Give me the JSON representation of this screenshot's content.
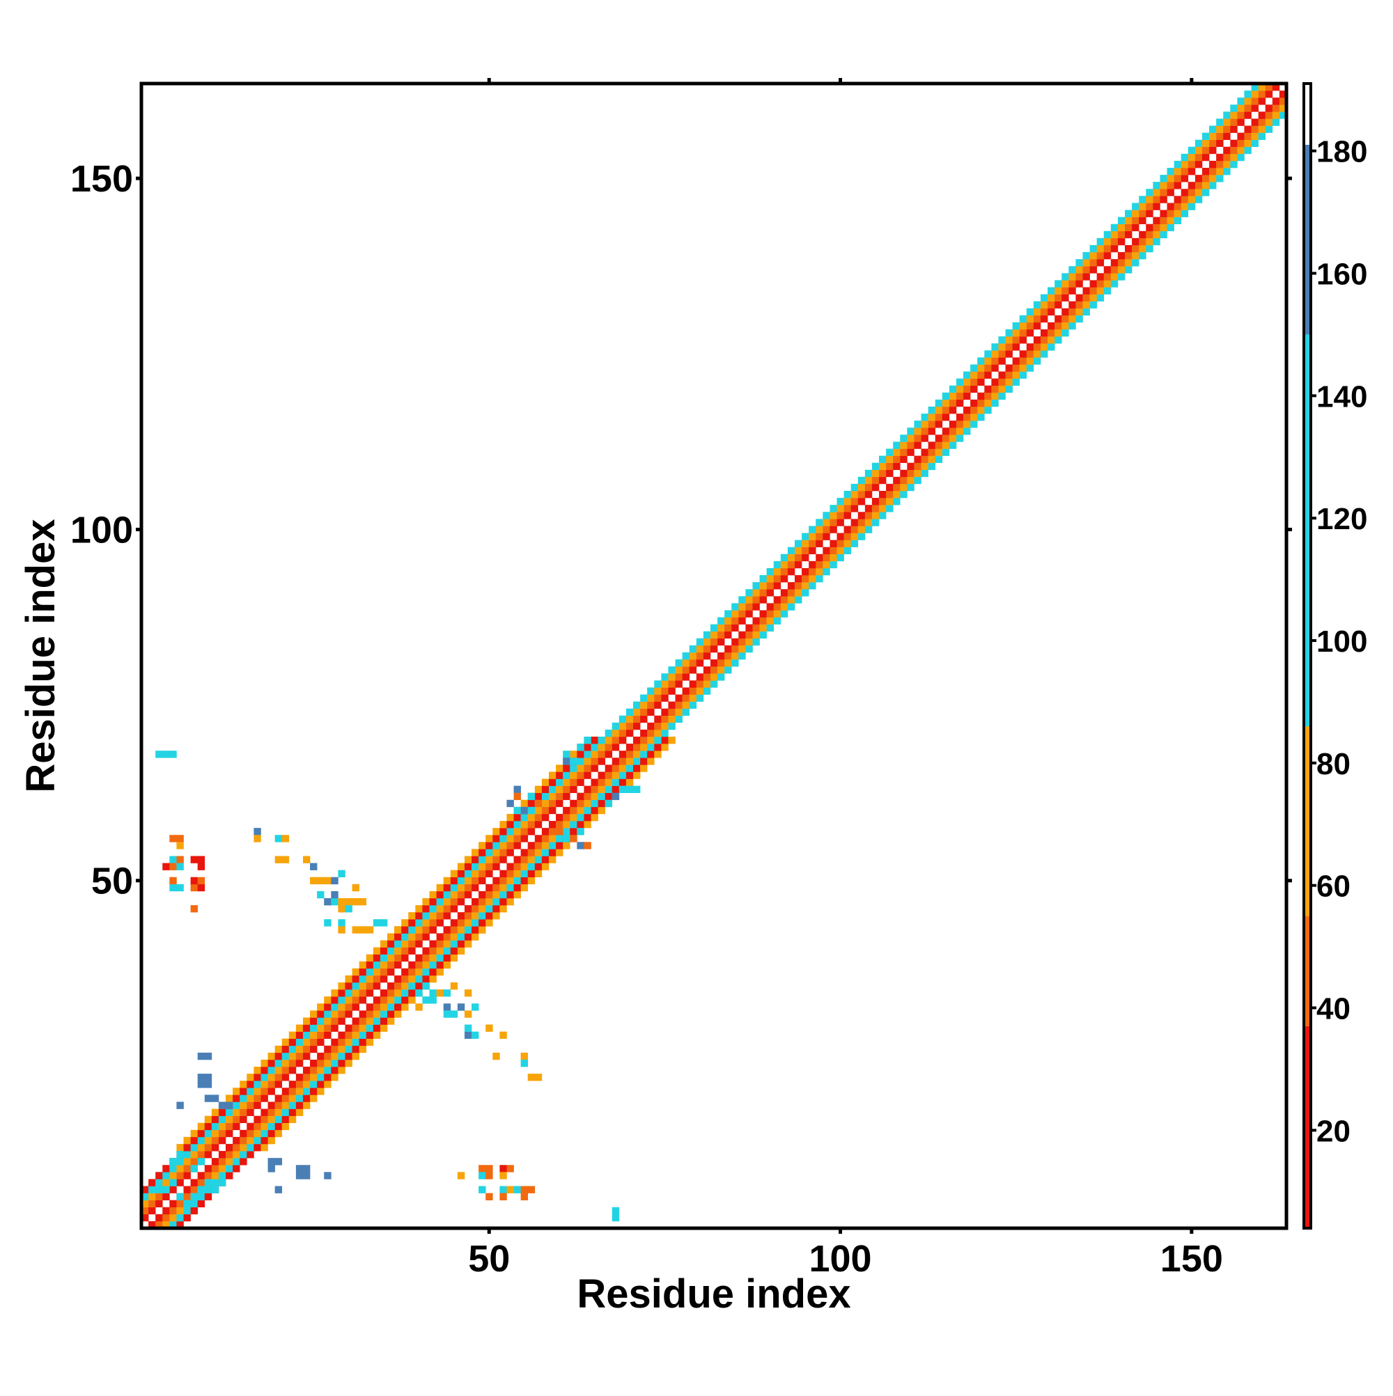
{
  "chart_data": {
    "type": "heatmap",
    "xlabel": "Residue index",
    "ylabel": "Residue index",
    "xlim": [
      1,
      163
    ],
    "ylim": [
      1,
      163
    ],
    "x_ticks": [
      50,
      100,
      150
    ],
    "y_ticks": [
      50,
      100,
      150
    ],
    "colorbar": {
      "range": [
        4,
        191
      ],
      "ticks": [
        20,
        40,
        60,
        80,
        100,
        120,
        140,
        160,
        180
      ],
      "colors": [
        {
          "from": 4,
          "to": 37,
          "color": "#e8160c"
        },
        {
          "from": 37,
          "to": 55,
          "color": "#f26a10"
        },
        {
          "from": 55,
          "to": 86,
          "color": "#f7a40a"
        },
        {
          "from": 86,
          "to": 150,
          "color": "#22d4e3"
        },
        {
          "from": 150,
          "to": 181,
          "color": "#4a7fb6"
        },
        {
          "from": 181,
          "to": 191,
          "color": "#ffffff"
        }
      ]
    },
    "cell_size": 1,
    "diagonal_band": {
      "offset_values": {
        "1": 12,
        "-1": 12,
        "2": 48,
        "-2": 48,
        "3": 70,
        "-3": 70,
        "4": 100,
        "-4": 100,
        "5": 25,
        "-5": 25,
        "6": 75,
        "-6": 75
      },
      "segments": [
        {
          "from": 1,
          "to": 12,
          "max_offset": 5
        },
        {
          "from": 12,
          "to": 43,
          "max_offset": 6
        },
        {
          "from": 43,
          "to": 70,
          "max_offset": 6
        },
        {
          "from": 70,
          "to": 163,
          "max_offset": 4
        }
      ]
    },
    "cells": [
      {
        "x": 3,
        "y": 6,
        "v": 110
      },
      {
        "x": 4,
        "y": 6,
        "v": 110
      },
      {
        "x": 5,
        "y": 7,
        "v": 110
      },
      {
        "x": 6,
        "y": 5,
        "v": 110
      },
      {
        "x": 7,
        "y": 4,
        "v": 110
      },
      {
        "x": 8,
        "y": 5,
        "v": 110
      },
      {
        "x": 9,
        "y": 6,
        "v": 110
      },
      {
        "x": 10,
        "y": 7,
        "v": 110
      },
      {
        "x": 11,
        "y": 6,
        "v": 110
      },
      {
        "x": 12,
        "y": 7,
        "v": 110
      },
      {
        "x": 8,
        "y": 9,
        "v": 110
      },
      {
        "x": 9,
        "y": 10,
        "v": 110
      },
      {
        "x": 5,
        "y": 10,
        "v": 110
      },
      {
        "x": 6,
        "y": 11,
        "v": 110
      },
      {
        "x": 19,
        "y": 10,
        "v": 160
      },
      {
        "x": 20,
        "y": 10,
        "v": 160
      },
      {
        "x": 19,
        "y": 9,
        "v": 160
      },
      {
        "x": 23,
        "y": 9,
        "v": 160
      },
      {
        "x": 23,
        "y": 8,
        "v": 160
      },
      {
        "x": 24,
        "y": 9,
        "v": 160
      },
      {
        "x": 24,
        "y": 8,
        "v": 160
      },
      {
        "x": 27,
        "y": 8,
        "v": 160
      },
      {
        "x": 20,
        "y": 6,
        "v": 160
      },
      {
        "x": 10,
        "y": 19,
        "v": 150
      },
      {
        "x": 11,
        "y": 19,
        "v": 150
      },
      {
        "x": 12,
        "y": 18,
        "v": 150
      },
      {
        "x": 13,
        "y": 18,
        "v": 150
      },
      {
        "x": 9,
        "y": 22,
        "v": 150
      },
      {
        "x": 10,
        "y": 22,
        "v": 150
      },
      {
        "x": 9,
        "y": 21,
        "v": 150
      },
      {
        "x": 10,
        "y": 21,
        "v": 150
      },
      {
        "x": 9,
        "y": 25,
        "v": 150
      },
      {
        "x": 10,
        "y": 25,
        "v": 150
      },
      {
        "x": 6,
        "y": 18,
        "v": 150
      },
      {
        "x": 3,
        "y": 68,
        "v": 110
      },
      {
        "x": 4,
        "y": 68,
        "v": 110
      },
      {
        "x": 5,
        "y": 68,
        "v": 110
      },
      {
        "x": 5,
        "y": 56,
        "v": 40
      },
      {
        "x": 6,
        "y": 56,
        "v": 40
      },
      {
        "x": 6,
        "y": 55,
        "v": 70
      },
      {
        "x": 5,
        "y": 53,
        "v": 110
      },
      {
        "x": 6,
        "y": 53,
        "v": 40
      },
      {
        "x": 4,
        "y": 52,
        "v": 10
      },
      {
        "x": 5,
        "y": 52,
        "v": 40
      },
      {
        "x": 6,
        "y": 52,
        "v": 110
      },
      {
        "x": 8,
        "y": 53,
        "v": 10
      },
      {
        "x": 9,
        "y": 53,
        "v": 10
      },
      {
        "x": 9,
        "y": 52,
        "v": 10
      },
      {
        "x": 5,
        "y": 49,
        "v": 110
      },
      {
        "x": 5,
        "y": 50,
        "v": 40
      },
      {
        "x": 6,
        "y": 49,
        "v": 110
      },
      {
        "x": 8,
        "y": 49,
        "v": 40
      },
      {
        "x": 9,
        "y": 49,
        "v": 10
      },
      {
        "x": 8,
        "y": 50,
        "v": 10
      },
      {
        "x": 9,
        "y": 50,
        "v": 40
      },
      {
        "x": 8,
        "y": 46,
        "v": 40
      },
      {
        "x": 17,
        "y": 57,
        "v": 150
      },
      {
        "x": 17,
        "y": 56,
        "v": 70
      },
      {
        "x": 20,
        "y": 56,
        "v": 110
      },
      {
        "x": 21,
        "y": 56,
        "v": 70
      },
      {
        "x": 20,
        "y": 53,
        "v": 70
      },
      {
        "x": 21,
        "y": 53,
        "v": 70
      },
      {
        "x": 24,
        "y": 53,
        "v": 70
      },
      {
        "x": 25,
        "y": 52,
        "v": 150
      },
      {
        "x": 25,
        "y": 50,
        "v": 70
      },
      {
        "x": 26,
        "y": 50,
        "v": 70
      },
      {
        "x": 27,
        "y": 50,
        "v": 70
      },
      {
        "x": 28,
        "y": 50,
        "v": 150
      },
      {
        "x": 29,
        "y": 51,
        "v": 110
      },
      {
        "x": 31,
        "y": 49,
        "v": 70
      },
      {
        "x": 26,
        "y": 48,
        "v": 110
      },
      {
        "x": 27,
        "y": 47,
        "v": 150
      },
      {
        "x": 28,
        "y": 47,
        "v": 110
      },
      {
        "x": 28,
        "y": 48,
        "v": 150
      },
      {
        "x": 29,
        "y": 47,
        "v": 70
      },
      {
        "x": 30,
        "y": 47,
        "v": 70
      },
      {
        "x": 31,
        "y": 47,
        "v": 70
      },
      {
        "x": 32,
        "y": 47,
        "v": 70
      },
      {
        "x": 29,
        "y": 46,
        "v": 70
      },
      {
        "x": 30,
        "y": 46,
        "v": 110
      },
      {
        "x": 29,
        "y": 44,
        "v": 110
      },
      {
        "x": 29,
        "y": 43,
        "v": 70
      },
      {
        "x": 31,
        "y": 43,
        "v": 70
      },
      {
        "x": 32,
        "y": 43,
        "v": 70
      },
      {
        "x": 33,
        "y": 43,
        "v": 70
      },
      {
        "x": 27,
        "y": 44,
        "v": 110
      },
      {
        "x": 34,
        "y": 44,
        "v": 110
      },
      {
        "x": 35,
        "y": 44,
        "v": 110
      },
      {
        "x": 40,
        "y": 34,
        "v": 110
      },
      {
        "x": 41,
        "y": 35,
        "v": 110
      },
      {
        "x": 42,
        "y": 34,
        "v": 110
      },
      {
        "x": 43,
        "y": 34,
        "v": 70
      },
      {
        "x": 44,
        "y": 34,
        "v": 110
      },
      {
        "x": 45,
        "y": 35,
        "v": 70
      },
      {
        "x": 47,
        "y": 34,
        "v": 70
      },
      {
        "x": 41,
        "y": 33,
        "v": 110
      },
      {
        "x": 42,
        "y": 33,
        "v": 110
      },
      {
        "x": 44,
        "y": 32,
        "v": 150
      },
      {
        "x": 45,
        "y": 31,
        "v": 110
      },
      {
        "x": 46,
        "y": 32,
        "v": 150
      },
      {
        "x": 44,
        "y": 31,
        "v": 110
      },
      {
        "x": 40,
        "y": 32,
        "v": 70
      },
      {
        "x": 47,
        "y": 31,
        "v": 70
      },
      {
        "x": 48,
        "y": 32,
        "v": 110
      },
      {
        "x": 47,
        "y": 28,
        "v": 150
      },
      {
        "x": 48,
        "y": 28,
        "v": 110
      },
      {
        "x": 47,
        "y": 29,
        "v": 110
      },
      {
        "x": 50,
        "y": 29,
        "v": 70
      },
      {
        "x": 52,
        "y": 28,
        "v": 70
      },
      {
        "x": 51,
        "y": 25,
        "v": 70
      },
      {
        "x": 55,
        "y": 25,
        "v": 70
      },
      {
        "x": 55,
        "y": 24,
        "v": 110
      },
      {
        "x": 56,
        "y": 22,
        "v": 70
      },
      {
        "x": 57,
        "y": 22,
        "v": 70
      },
      {
        "x": 46,
        "y": 8,
        "v": 70
      },
      {
        "x": 49,
        "y": 9,
        "v": 40
      },
      {
        "x": 50,
        "y": 9,
        "v": 40
      },
      {
        "x": 49,
        "y": 8,
        "v": 110
      },
      {
        "x": 50,
        "y": 8,
        "v": 40
      },
      {
        "x": 49,
        "y": 6,
        "v": 110
      },
      {
        "x": 50,
        "y": 5,
        "v": 40
      },
      {
        "x": 52,
        "y": 9,
        "v": 10
      },
      {
        "x": 53,
        "y": 9,
        "v": 40
      },
      {
        "x": 52,
        "y": 8,
        "v": 70
      },
      {
        "x": 52,
        "y": 6,
        "v": 110
      },
      {
        "x": 53,
        "y": 6,
        "v": 70
      },
      {
        "x": 52,
        "y": 5,
        "v": 40
      },
      {
        "x": 54,
        "y": 6,
        "v": 110
      },
      {
        "x": 55,
        "y": 6,
        "v": 40
      },
      {
        "x": 56,
        "y": 6,
        "v": 40
      },
      {
        "x": 55,
        "y": 5,
        "v": 40
      },
      {
        "x": 68,
        "y": 3,
        "v": 110
      },
      {
        "x": 68,
        "y": 2,
        "v": 110
      },
      {
        "x": 54,
        "y": 63,
        "v": 150
      },
      {
        "x": 54,
        "y": 62,
        "v": 40
      },
      {
        "x": 56,
        "y": 62,
        "v": 110
      },
      {
        "x": 54,
        "y": 60,
        "v": 110
      },
      {
        "x": 55,
        "y": 60,
        "v": 150
      },
      {
        "x": 56,
        "y": 60,
        "v": 110
      },
      {
        "x": 57,
        "y": 61,
        "v": 40
      },
      {
        "x": 53,
        "y": 61,
        "v": 150
      },
      {
        "x": 60,
        "y": 57,
        "v": 40
      },
      {
        "x": 61,
        "y": 56,
        "v": 110
      },
      {
        "x": 62,
        "y": 56,
        "v": 40
      },
      {
        "x": 63,
        "y": 55,
        "v": 150
      },
      {
        "x": 64,
        "y": 55,
        "v": 40
      },
      {
        "x": 63,
        "y": 57,
        "v": 110
      },
      {
        "x": 61,
        "y": 68,
        "v": 110
      },
      {
        "x": 61,
        "y": 67,
        "v": 150
      },
      {
        "x": 62,
        "y": 67,
        "v": 110
      },
      {
        "x": 63,
        "y": 69,
        "v": 110
      },
      {
        "x": 64,
        "y": 70,
        "v": 110
      },
      {
        "x": 69,
        "y": 63,
        "v": 110
      },
      {
        "x": 70,
        "y": 63,
        "v": 110
      },
      {
        "x": 71,
        "y": 63,
        "v": 110
      },
      {
        "x": 67,
        "y": 61,
        "v": 110
      },
      {
        "x": 68,
        "y": 62,
        "v": 150
      }
    ]
  }
}
